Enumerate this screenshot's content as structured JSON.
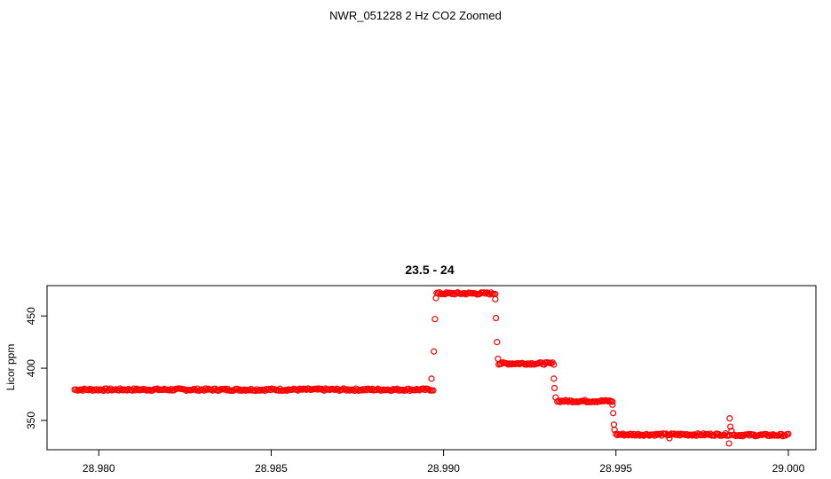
{
  "page": {
    "title": "NWR_051228  2 Hz CO2 Zoomed"
  },
  "chart_data": {
    "type": "scatter",
    "title": "23.5 - 24",
    "xlabel": "",
    "ylabel": "Licor ppm",
    "xlim": [
      28.9785,
      29.0008
    ],
    "ylim": [
      322,
      479
    ],
    "x_ticks": [
      "28.980",
      "28.985",
      "28.990",
      "28.995",
      "29.000"
    ],
    "y_ticks": [
      "350",
      "400",
      "450"
    ],
    "marker": "open-circle",
    "point_color": "#ff0000",
    "grid": false,
    "segments": [
      {
        "x0": 28.9793,
        "x1": 28.9897,
        "y": 379.5
      },
      {
        "x0": 28.9898,
        "x1": 28.9915,
        "y": 471.5
      },
      {
        "x0": 28.9916,
        "x1": 28.9932,
        "y": 404.5
      },
      {
        "x0": 28.9933,
        "x1": 28.9949,
        "y": 368.5
      },
      {
        "x0": 28.995,
        "x1": 28.9983,
        "y": 336.5
      },
      {
        "x0": 28.9984,
        "x1": 29.0,
        "y": 336.0
      }
    ],
    "transition_points": [
      {
        "x": 28.98965,
        "y": 390
      },
      {
        "x": 28.98972,
        "y": 416
      },
      {
        "x": 28.98975,
        "y": 447
      },
      {
        "x": 28.98978,
        "y": 467
      },
      {
        "x": 28.9915,
        "y": 466
      },
      {
        "x": 28.99152,
        "y": 448
      },
      {
        "x": 28.99155,
        "y": 425
      },
      {
        "x": 28.99158,
        "y": 409
      },
      {
        "x": 28.9932,
        "y": 390
      },
      {
        "x": 28.99322,
        "y": 381
      },
      {
        "x": 28.99325,
        "y": 372
      },
      {
        "x": 28.9949,
        "y": 365
      },
      {
        "x": 28.99492,
        "y": 357
      },
      {
        "x": 28.99494,
        "y": 346
      },
      {
        "x": 28.99496,
        "y": 341
      },
      {
        "x": 28.99655,
        "y": 333
      },
      {
        "x": 28.9983,
        "y": 352
      },
      {
        "x": 28.99832,
        "y": 344
      },
      {
        "x": 28.99835,
        "y": 340
      },
      {
        "x": 28.99828,
        "y": 328
      }
    ]
  }
}
